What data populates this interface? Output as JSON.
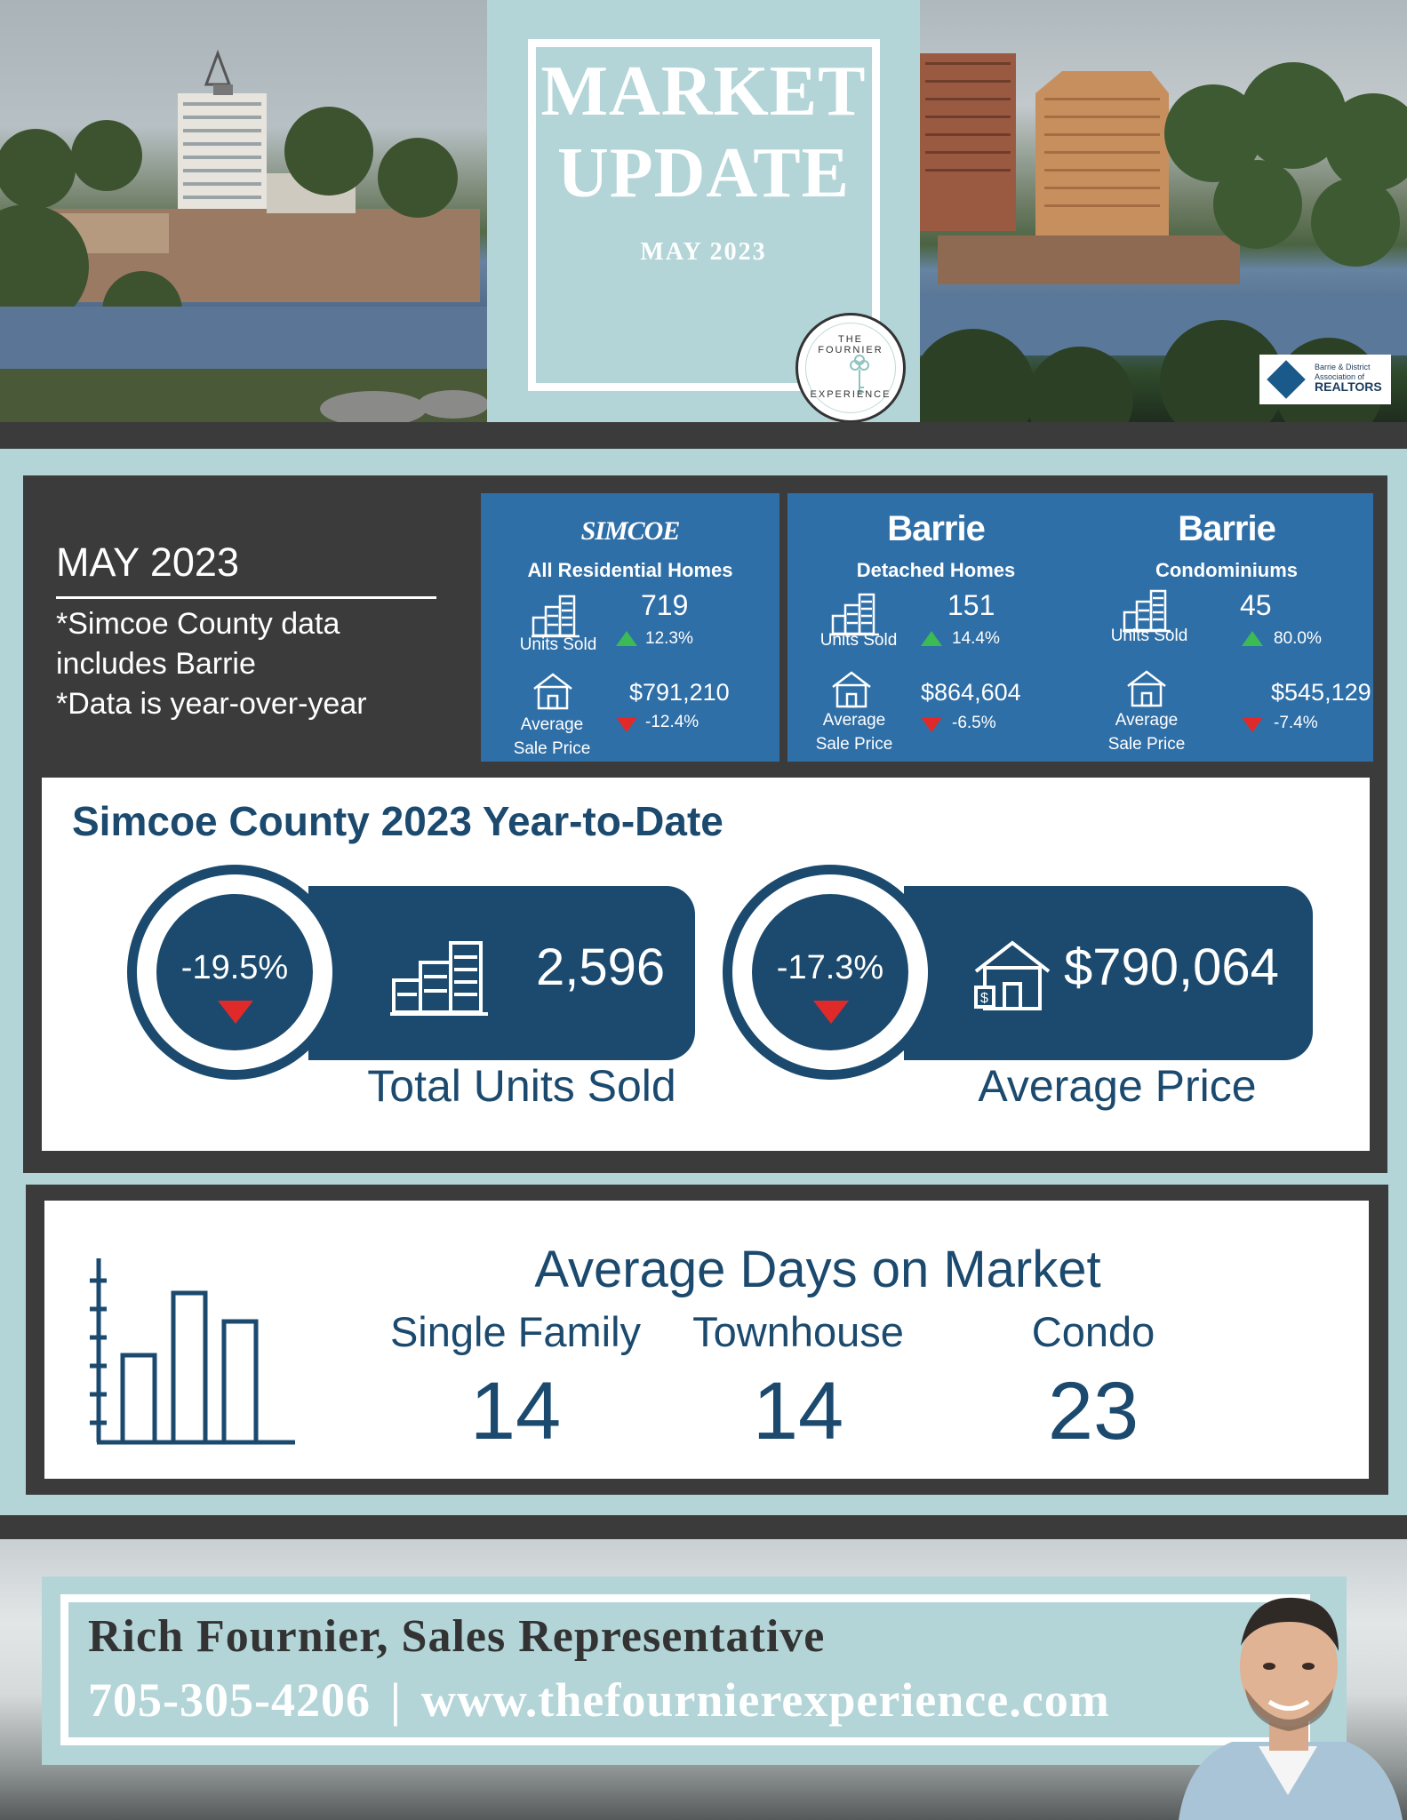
{
  "header": {
    "title_line1": "MARKET",
    "title_line2": "UPDATE",
    "date": "MAY 2023",
    "seal_top": "THE FOURNIER",
    "seal_bottom": "EXPERIENCE",
    "association_small": "Barrie & District",
    "association_mid": "Association of",
    "association_big": "REALTORS"
  },
  "intro": {
    "title": "MAY 2023",
    "note_lines": [
      "*Simcoe County data",
      "includes Barrie",
      "*Data is year-over-year"
    ]
  },
  "cards": [
    {
      "logo": "SIMCOE",
      "subtitle": "All Residential Homes",
      "units_label": "Units Sold",
      "units_value": "719",
      "units_change": "12.3%",
      "units_direction": "up",
      "price_label_1": "Average",
      "price_label_2": "Sale Price",
      "price_value": "$791,210",
      "price_change": "-12.4%",
      "price_direction": "down"
    },
    {
      "logo": "Barrie",
      "subtitle": "Detached Homes",
      "units_label": "Units Sold",
      "units_value": "151",
      "units_change": "14.4%",
      "units_direction": "up",
      "price_label_1": "Average",
      "price_label_2": "Sale Price",
      "price_value": "$864,604",
      "price_change": "-6.5%",
      "price_direction": "down"
    },
    {
      "logo": "Barrie",
      "subtitle": "Condominiums",
      "units_label": "Units Sold",
      "units_value": "45",
      "units_change": "80.0%",
      "units_direction": "up",
      "price_label_1": "Average",
      "price_label_2": "Sale Price",
      "price_value": "$545,129",
      "price_change": "-7.4%",
      "price_direction": "down"
    }
  ],
  "ytd": {
    "title": "Simcoe County 2023 Year-to-Date",
    "units": {
      "change": "-19.5%",
      "value": "2,596",
      "caption": "Total Units Sold"
    },
    "price": {
      "change": "-17.3%",
      "value": "$790,064",
      "caption": "Average Price"
    }
  },
  "days_on_market": {
    "title": "Average Days on Market",
    "columns": [
      {
        "label": "Single Family",
        "value": "14"
      },
      {
        "label": "Townhouse",
        "value": "14"
      },
      {
        "label": "Condo",
        "value": "23"
      }
    ]
  },
  "contact": {
    "name": "Rich Fournier, Sales Representative",
    "phone": "705-305-4206",
    "separator": "|",
    "website": "www.thefournierexperience.com"
  },
  "colors": {
    "teal": "#b3d5d8",
    "navy": "#1b4a6e",
    "card_blue": "#2f6fa7",
    "dark": "#3b3b3b",
    "up": "#3cba54",
    "down": "#e02a2a"
  }
}
